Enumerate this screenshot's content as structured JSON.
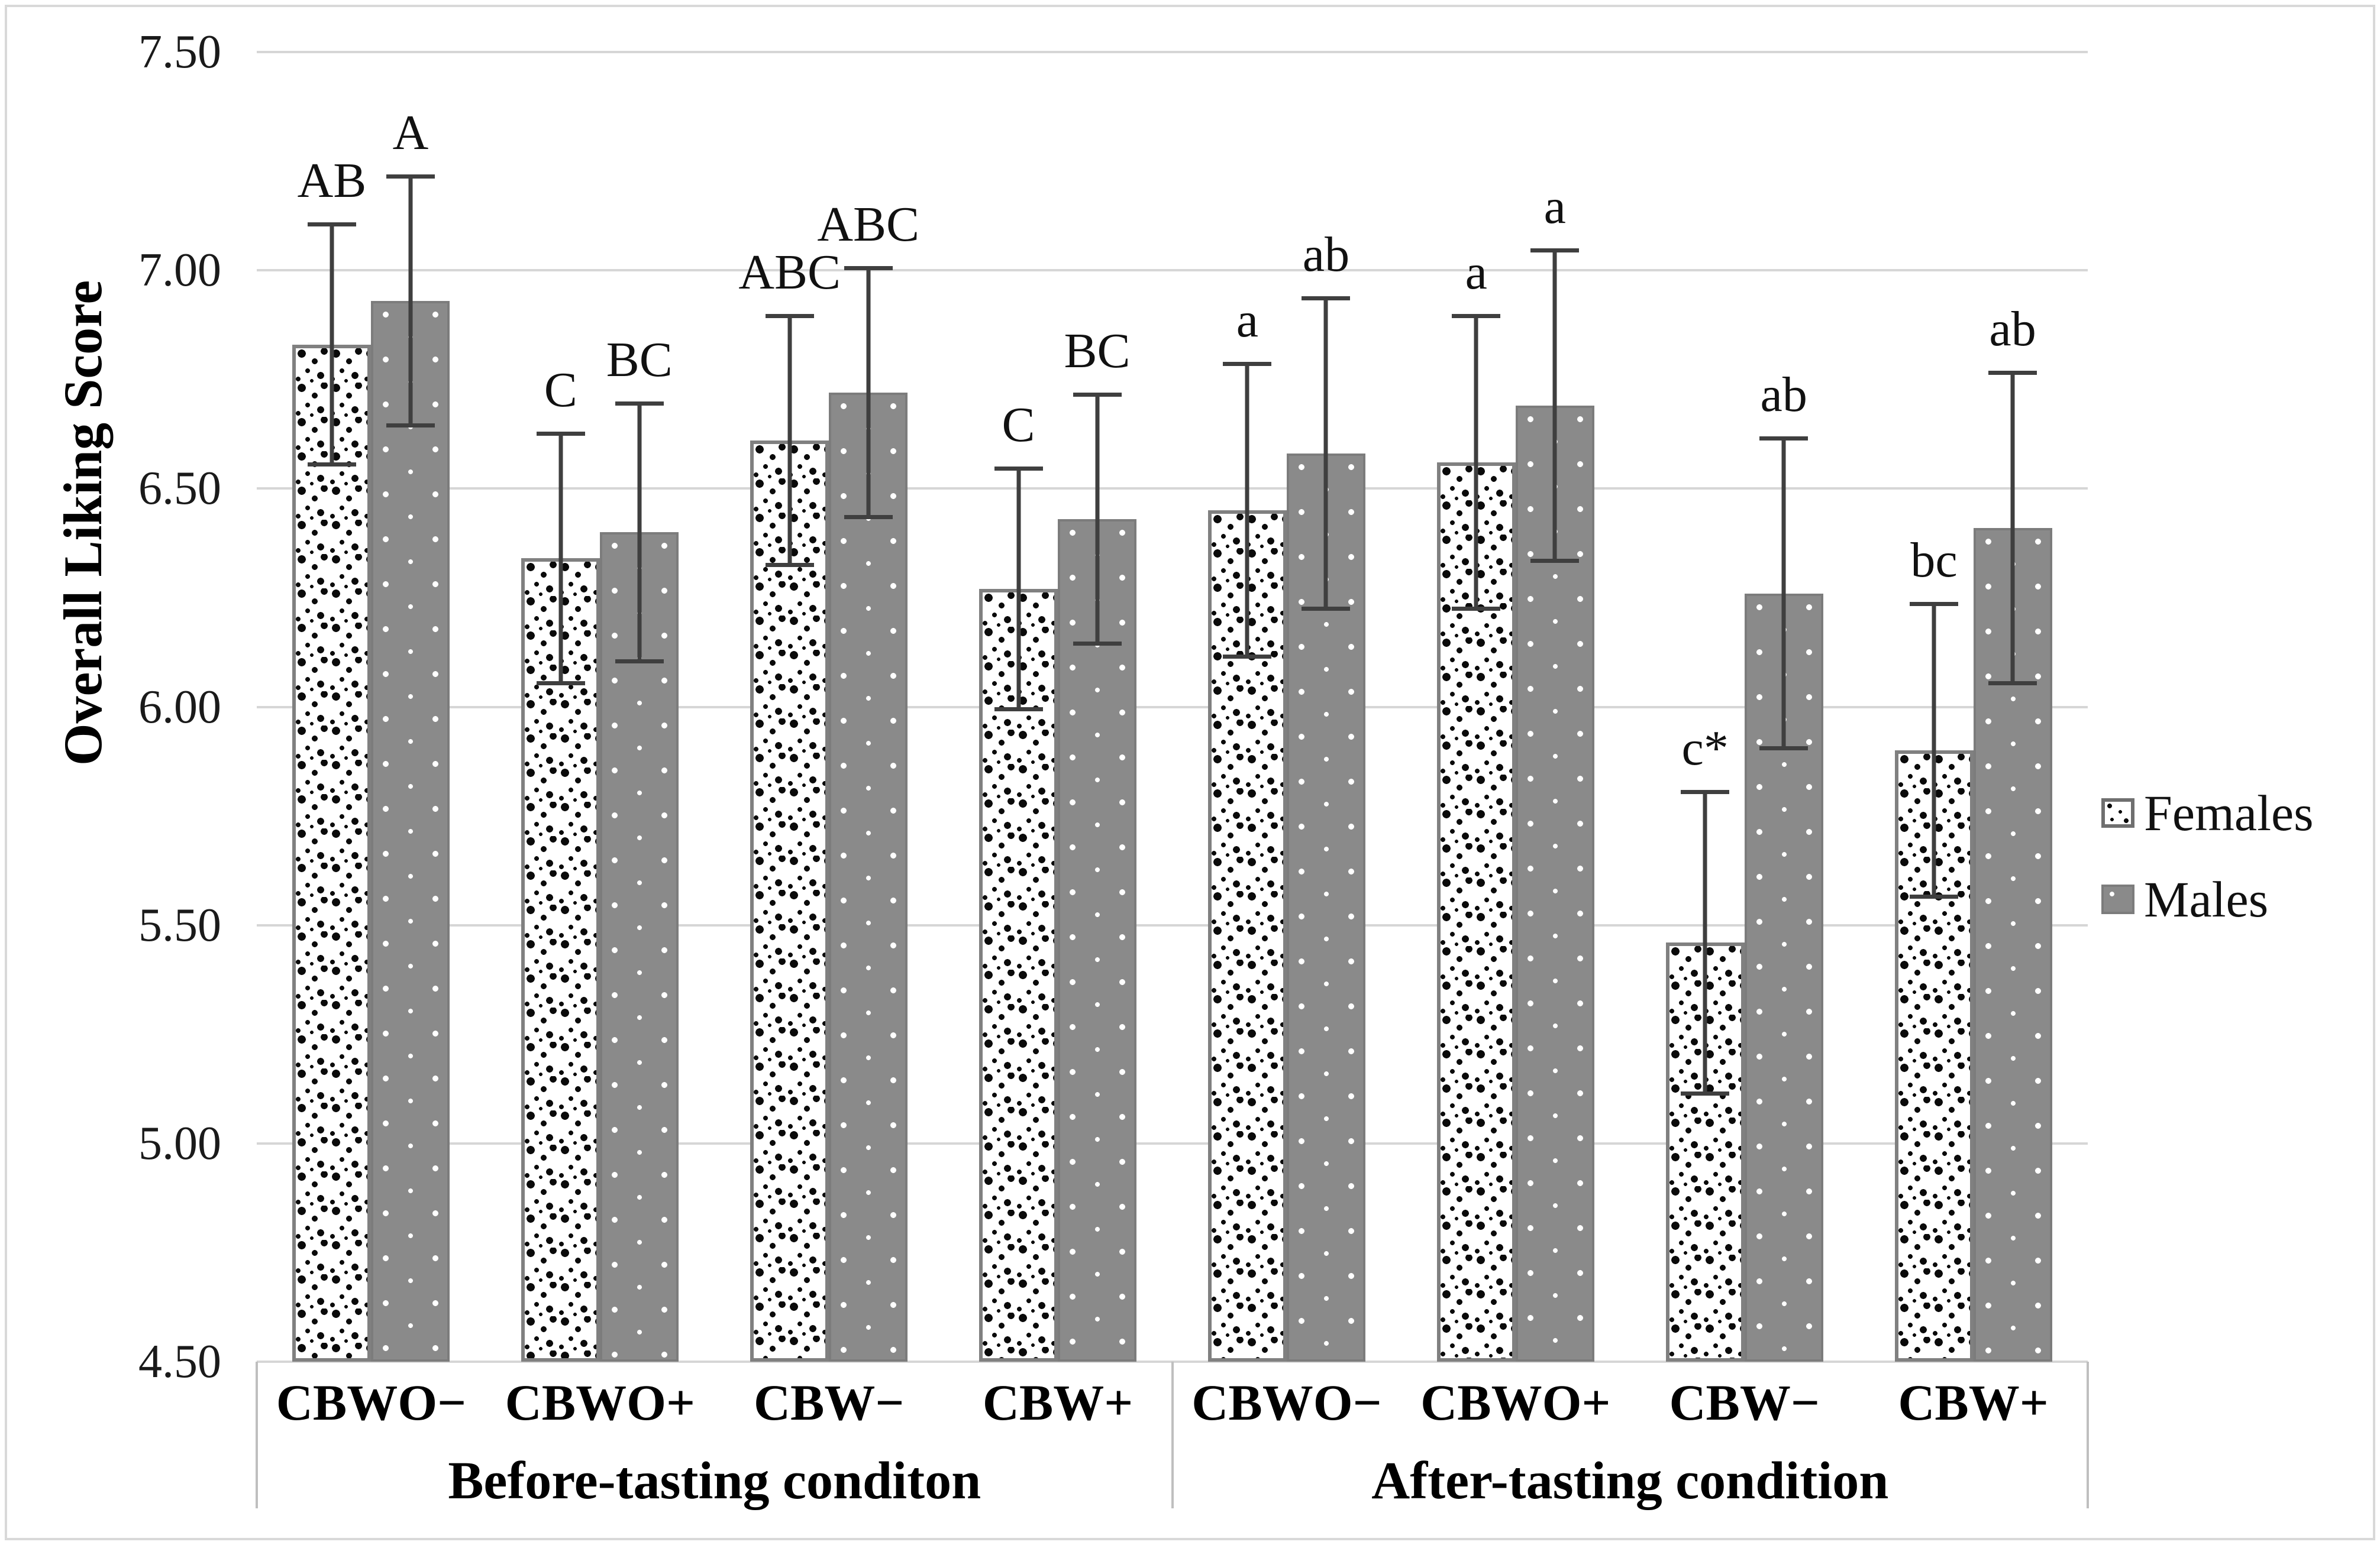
{
  "figure": {
    "background": "#ffffff",
    "border_color": "#d9d9d9",
    "gridline_color": "#d6d6d6",
    "error_bar_color": "#3f3f3f",
    "male_fill": "#8a8a8a",
    "female_border": "#808080"
  },
  "y_axis": {
    "title": "Overall Liking Score",
    "min": 4.5,
    "max": 7.5,
    "ticks": [
      {
        "label": "7.50",
        "value": 7.5
      },
      {
        "label": "7.00",
        "value": 7.0
      },
      {
        "label": "6.50",
        "value": 6.5
      },
      {
        "label": "6.00",
        "value": 6.0
      },
      {
        "label": "5.50",
        "value": 5.5
      },
      {
        "label": "5.00",
        "value": 5.0
      },
      {
        "label": "4.50",
        "value": 4.5
      }
    ]
  },
  "x_axis": {
    "groups": [
      {
        "label": "Before-tasting conditon",
        "categories": [
          "CBWO−",
          "CBWO+",
          "CBW−",
          "CBW+"
        ]
      },
      {
        "label": "After-tasting condition",
        "categories": [
          "CBWO−",
          "CBWO+",
          "CBW−",
          "CBW+"
        ]
      }
    ]
  },
  "legend": {
    "items": [
      {
        "label": "Females",
        "swatch": "female-pattern-swatch"
      },
      {
        "label": "Males",
        "swatch": "male-pattern-swatch"
      }
    ]
  },
  "chart_data": {
    "type": "bar",
    "title": "",
    "xlabel": "",
    "ylabel": "Overall Liking Score",
    "ylim": [
      4.5,
      7.5
    ],
    "ystep": 0.5,
    "grid": true,
    "legend_position": "right",
    "group_labels": [
      "Before-tasting conditon",
      "After-tasting condition"
    ],
    "categories": [
      "CBWO−",
      "CBWO+",
      "CBW−",
      "CBW+",
      "CBWO−",
      "CBWO+",
      "CBW−",
      "CBW+"
    ],
    "series": [
      {
        "name": "Females",
        "values": [
          6.83,
          6.34,
          6.61,
          6.27,
          6.45,
          6.56,
          5.46,
          5.9
        ],
        "errors": [
          0.28,
          0.29,
          0.29,
          0.28,
          0.34,
          0.34,
          0.35,
          0.34
        ],
        "letters": [
          "AB",
          "C",
          "ABC",
          "C",
          "a",
          "a",
          "c*",
          "bc"
        ]
      },
      {
        "name": "Males",
        "values": [
          6.93,
          6.4,
          6.72,
          6.43,
          6.58,
          6.69,
          6.26,
          6.41
        ],
        "errors": [
          0.29,
          0.3,
          0.29,
          0.29,
          0.36,
          0.36,
          0.36,
          0.36
        ],
        "letters": [
          "A",
          "BC",
          "ABC",
          "BC",
          "ab",
          "a",
          "ab",
          "ab"
        ]
      }
    ]
  }
}
